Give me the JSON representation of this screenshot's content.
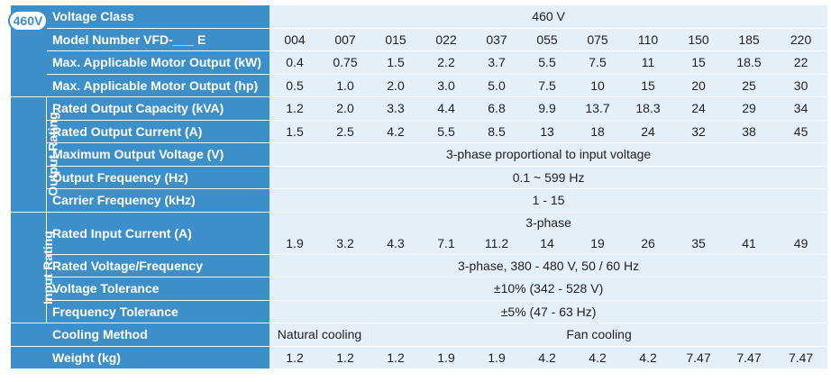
{
  "badge": "460V",
  "side_labels": {
    "output": "Output Rating",
    "input": "Input Rating"
  },
  "rows": {
    "voltage_class": {
      "label": "Voltage Class",
      "value": "460 V"
    },
    "model": {
      "label": "Model Number VFD-___ E",
      "values": [
        "004",
        "007",
        "015",
        "022",
        "037",
        "055",
        "075",
        "110",
        "150",
        "185",
        "220"
      ]
    },
    "motor_kw": {
      "label": "Max. Applicable Motor Output (kW)",
      "values": [
        "0.4",
        "0.75",
        "1.5",
        "2.2",
        "3.7",
        "5.5",
        "7.5",
        "11",
        "15",
        "18.5",
        "22"
      ]
    },
    "motor_hp": {
      "label": "Max. Applicable Motor Output (hp)",
      "values": [
        "0.5",
        "1.0",
        "2.0",
        "3.0",
        "5.0",
        "7.5",
        "10",
        "15",
        "20",
        "25",
        "30"
      ]
    },
    "out_kva": {
      "label": "Rated Output Capacity (kVA)",
      "values": [
        "1.2",
        "2.0",
        "3.3",
        "4.4",
        "6.8",
        "9.9",
        "13.7",
        "18.3",
        "24",
        "29",
        "34"
      ]
    },
    "out_amp": {
      "label": "Rated Output Current (A)",
      "values": [
        "1.5",
        "2.5",
        "4.2",
        "5.5",
        "8.5",
        "13",
        "18",
        "24",
        "32",
        "38",
        "45"
      ]
    },
    "max_out_v": {
      "label": "Maximum Output Voltage (V)",
      "value": "3-phase proportional to input voltage"
    },
    "out_freq": {
      "label": "Output Frequency (Hz)",
      "value": "0.1 ~ 599 Hz"
    },
    "carrier": {
      "label": "Carrier Frequency (kHz)",
      "value": "1 - 15"
    },
    "in_amp": {
      "label": "Rated Input Current (A)",
      "header": "3-phase",
      "values": [
        "1.9",
        "3.2",
        "4.3",
        "7.1",
        "11.2",
        "14",
        "19",
        "26",
        "35",
        "41",
        "49"
      ]
    },
    "rated_vf": {
      "label": "Rated Voltage/Frequency",
      "value": "3-phase, 380 - 480 V, 50 / 60 Hz"
    },
    "v_tol": {
      "label": "Voltage Tolerance",
      "value": "±10% (342 - 528 V)"
    },
    "f_tol": {
      "label": "Frequency Tolerance",
      "value": "±5% (47 - 63 Hz)"
    },
    "cooling": {
      "label": "Cooling Method",
      "natural": "Natural cooling",
      "fan": "Fan cooling"
    },
    "weight": {
      "label": "Weight (kg)",
      "values": [
        "1.2",
        "1.2",
        "1.2",
        "1.9",
        "1.9",
        "4.2",
        "4.2",
        "4.2",
        "7.47",
        "7.47",
        "7.47"
      ]
    }
  },
  "colors": {
    "header_blue": "#3d8fc9",
    "cell_light": "#e4eff8"
  }
}
